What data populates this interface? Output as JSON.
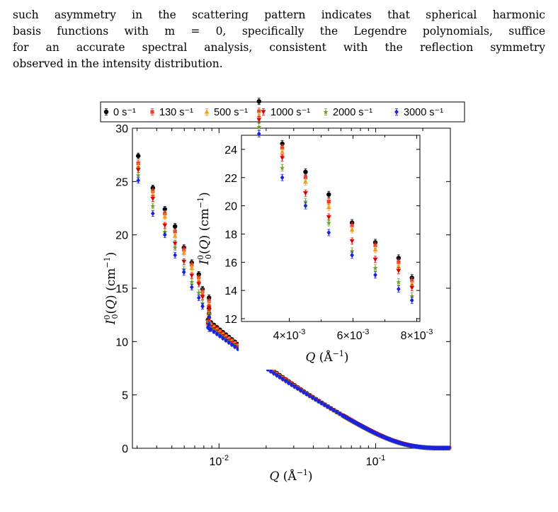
{
  "paragraph": {
    "lines": [
      "such asymmetry in the scattering pattern indicates that spherical harmonic",
      "basis functions with m = 0, specifically the Legendre polynomials, suffice",
      "for an accurate spectral analysis, consistent with the reflection symmetry",
      "observed in the intensity distribution."
    ]
  },
  "chart_data": [
    {
      "type": "scatter",
      "x_scale": "log",
      "xlim": [
        0.0028,
        0.3
      ],
      "ylim": [
        0,
        30
      ],
      "xlabel": "Q (Å⁻¹)",
      "ylabel": "I₀⁰(Q) (cm⁻¹)",
      "x_ticks": [
        0.01,
        0.1
      ],
      "x_tick_labels": [
        "10⁻²",
        "10⁻¹"
      ],
      "y_ticks": [
        0,
        5,
        10,
        15,
        20,
        25,
        30
      ],
      "legend_position": "top, outside plot",
      "series": [
        {
          "name": "0 s⁻¹",
          "color": "#000000",
          "marker": "circle",
          "first_values": [
            27.4,
            24.4,
            22.4,
            20.8,
            18.8,
            17.4,
            16.3,
            14.9,
            14.1,
            13.1,
            12.6
          ]
        },
        {
          "name": "130 s⁻¹",
          "color": "#e8402a",
          "marker": "square",
          "first_values": [
            26.7,
            24.1,
            22.0,
            20.3,
            18.6,
            17.2,
            16.0,
            14.7,
            13.8,
            12.9,
            12.3
          ]
        },
        {
          "name": "500 s⁻¹",
          "color": "#f0a020",
          "marker": "triangle-up",
          "first_values": [
            26.4,
            23.8,
            21.7,
            19.9,
            18.3,
            16.9,
            15.7,
            14.4,
            13.5,
            12.6,
            12.0
          ]
        },
        {
          "name": "1000 s⁻¹",
          "color": "#dd0000",
          "marker": "triangle-down",
          "first_values": [
            26.1,
            23.4,
            20.9,
            19.2,
            17.5,
            16.2,
            15.4,
            14.2,
            13.2,
            12.1,
            11.7
          ]
        },
        {
          "name": "2000 s⁻¹",
          "color": "#70a030",
          "marker": "star",
          "first_values": [
            25.6,
            22.7,
            20.3,
            18.8,
            16.8,
            15.6,
            14.6,
            13.6,
            12.6,
            11.8,
            11.5
          ]
        },
        {
          "name": "3000 s⁻¹",
          "color": "#1a22e0",
          "marker": "diamond",
          "first_values": [
            25.1,
            22.0,
            20.0,
            18.1,
            16.5,
            15.1,
            14.1,
            13.3,
            12.3,
            11.6,
            11.2
          ]
        }
      ]
    },
    {
      "type": "scatter",
      "panel": "inset",
      "xlim": [
        0.0025,
        0.0081
      ],
      "ylim": [
        11.8,
        25
      ],
      "xlabel": "Q (Å⁻¹)",
      "ylabel": "I₀⁰(Q) (cm⁻¹)",
      "x_ticks": [
        0.004,
        0.006,
        0.008
      ],
      "x_tick_labels": [
        "4×10⁻³",
        "6×10⁻³",
        "8×10⁻³"
      ],
      "y_ticks": [
        12,
        14,
        16,
        18,
        20,
        22,
        24
      ],
      "x_points": [
        0.00305,
        0.00378,
        0.00451,
        0.00524,
        0.00597,
        0.0067,
        0.00743,
        0.00785
      ]
    }
  ]
}
